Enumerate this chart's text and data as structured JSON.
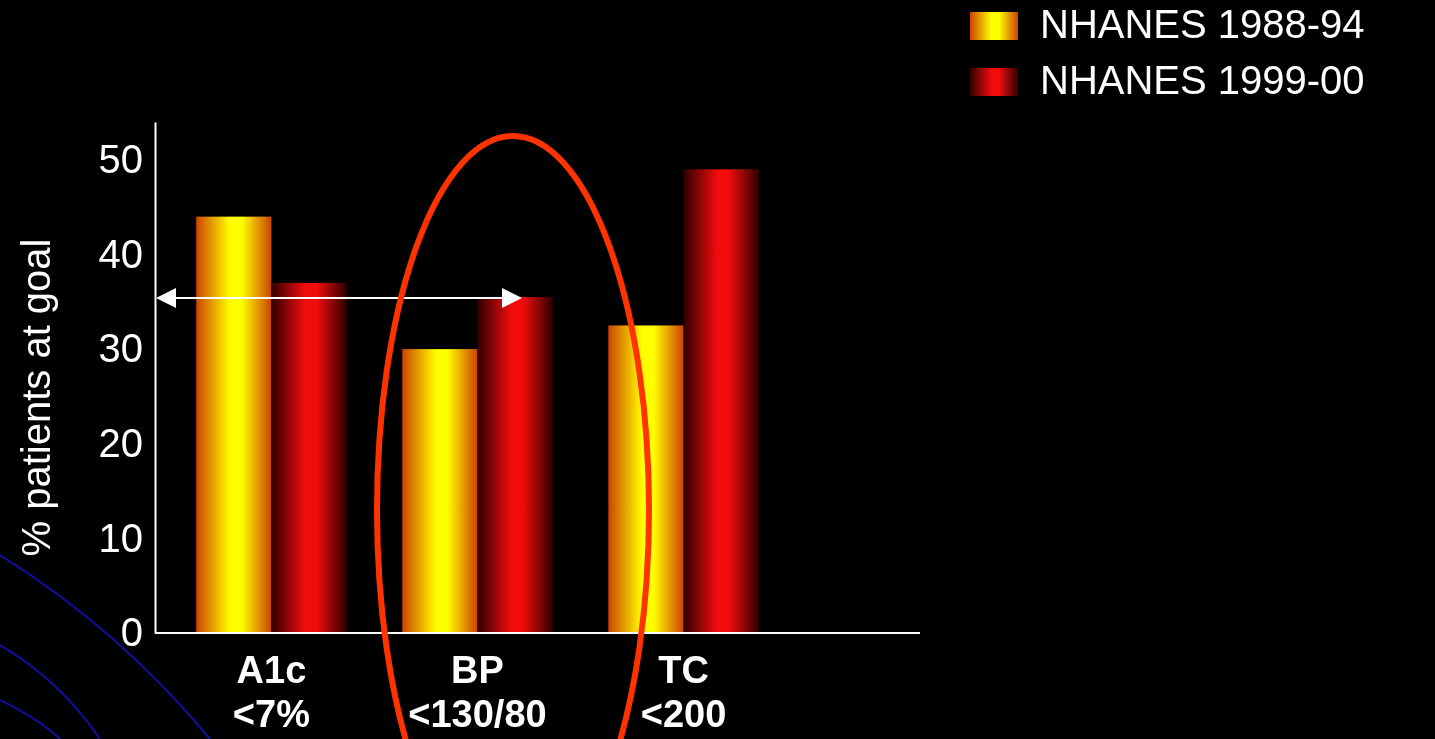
{
  "chart_data": {
    "type": "bar",
    "ylabel": "% patients at goal",
    "categories": [
      "A1c\n<7%",
      "BP\n<130/80",
      "TC\n<200"
    ],
    "series": [
      {
        "name": "NHANES 1988-94",
        "color": "#ffff00",
        "values": [
          44,
          30,
          32.5
        ]
      },
      {
        "name": "NHANES 1999-00",
        "color": "#f20c0c",
        "values": [
          37,
          35.5,
          49
        ]
      }
    ],
    "ylim": [
      0,
      54
    ],
    "yticks": [
      0,
      10,
      20,
      30,
      40,
      50
    ],
    "grid": false,
    "legend": "top right"
  }
}
